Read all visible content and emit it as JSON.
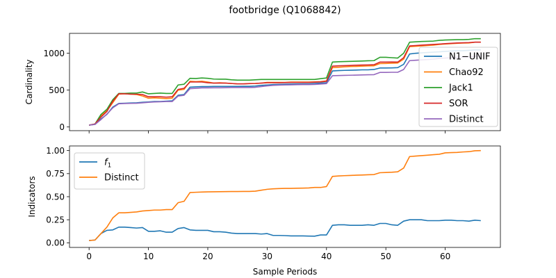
{
  "figure_title": "footbridge (Q1068842)",
  "colors": {
    "N1-UNIF": "#1f77b4",
    "Chao92": "#ff7f0e",
    "Jack1": "#2ca02c",
    "SOR": "#d62728",
    "Distinct": "#9467bd",
    "f1": "#1f77b4",
    "DistinctNorm": "#ff7f0e"
  },
  "chart_data": [
    {
      "type": "line",
      "title": "",
      "xlabel": "",
      "ylabel": "Cardinality",
      "xlim": [
        -3.3,
        69.3
      ],
      "ylim": [
        -50,
        1270
      ],
      "xticks": [
        0,
        10,
        20,
        30,
        40,
        50,
        60
      ],
      "yticks": [
        0,
        500,
        1000
      ],
      "show_xticklabels": false,
      "grid": false,
      "legend_position": "right",
      "x": [
        0,
        1,
        2,
        3,
        4,
        5,
        6,
        7,
        8,
        9,
        10,
        11,
        12,
        13,
        14,
        15,
        16,
        17,
        18,
        19,
        20,
        21,
        22,
        23,
        24,
        25,
        26,
        27,
        28,
        29,
        30,
        31,
        32,
        33,
        34,
        35,
        36,
        37,
        38,
        39,
        40,
        41,
        42,
        43,
        44,
        45,
        46,
        47,
        48,
        49,
        50,
        51,
        52,
        53,
        54,
        55,
        56,
        57,
        58,
        59,
        60,
        61,
        62,
        63,
        64,
        65,
        66
      ],
      "series": [
        {
          "name": "N1−UNIF",
          "color_key": "N1-UNIF",
          "values": [
            25,
            35,
            110,
            170,
            270,
            320,
            322,
            325,
            328,
            335,
            340,
            345,
            345,
            350,
            355,
            430,
            440,
            540,
            545,
            548,
            548,
            550,
            550,
            550,
            550,
            550,
            552,
            552,
            555,
            565,
            570,
            575,
            578,
            580,
            582,
            584,
            585,
            585,
            590,
            595,
            600,
            760,
            765,
            768,
            770,
            772,
            775,
            775,
            780,
            800,
            800,
            802,
            805,
            850,
            990,
            1000,
            1005,
            1010,
            1015,
            1020,
            1025,
            1030,
            1035,
            1035,
            1040,
            1045,
            1045
          ]
        },
        {
          "name": "Chao92",
          "color_key": "Chao92",
          "values": [
            25,
            40,
            150,
            220,
            330,
            445,
            450,
            445,
            440,
            420,
            390,
            395,
            390,
            385,
            390,
            500,
            510,
            620,
            615,
            620,
            610,
            595,
            600,
            595,
            590,
            585,
            585,
            590,
            590,
            595,
            605,
            605,
            605,
            605,
            610,
            610,
            610,
            610,
            612,
            615,
            625,
            805,
            810,
            815,
            820,
            822,
            825,
            828,
            830,
            860,
            862,
            865,
            868,
            920,
            1090,
            1095,
            1100,
            1105,
            1110,
            1120,
            1125,
            1130,
            1135,
            1138,
            1140,
            1150,
            1150
          ]
        },
        {
          "name": "Jack1",
          "color_key": "Jack1",
          "values": [
            25,
            40,
            170,
            240,
            370,
            455,
            455,
            460,
            460,
            475,
            450,
            455,
            460,
            455,
            455,
            570,
            580,
            660,
            658,
            665,
            660,
            650,
            648,
            648,
            640,
            635,
            635,
            635,
            640,
            645,
            645,
            645,
            645,
            645,
            645,
            645,
            645,
            645,
            645,
            655,
            665,
            880,
            885,
            888,
            890,
            892,
            895,
            898,
            900,
            945,
            945,
            940,
            935,
            1000,
            1150,
            1155,
            1160,
            1162,
            1165,
            1175,
            1180,
            1182,
            1185,
            1185,
            1188,
            1198,
            1198
          ]
        },
        {
          "name": "SOR",
          "color_key": "SOR",
          "values": [
            25,
            40,
            135,
            210,
            350,
            450,
            450,
            445,
            445,
            440,
            410,
            410,
            410,
            405,
            410,
            510,
            525,
            610,
            610,
            610,
            600,
            595,
            595,
            595,
            590,
            585,
            585,
            588,
            590,
            595,
            600,
            600,
            600,
            602,
            605,
            605,
            605,
            605,
            608,
            612,
            620,
            825,
            830,
            832,
            835,
            838,
            840,
            842,
            845,
            880,
            880,
            882,
            880,
            940,
            1100,
            1105,
            1110,
            1115,
            1120,
            1125,
            1130,
            1135,
            1140,
            1142,
            1145,
            1150,
            1150
          ]
        },
        {
          "name": "Distinct",
          "color_key": "Distinct",
          "values": [
            25,
            35,
            100,
            175,
            260,
            315,
            318,
            320,
            322,
            328,
            335,
            340,
            342,
            345,
            345,
            420,
            430,
            520,
            525,
            530,
            530,
            532,
            532,
            533,
            535,
            535,
            535,
            535,
            538,
            548,
            558,
            565,
            568,
            570,
            572,
            574,
            575,
            575,
            578,
            582,
            588,
            695,
            698,
            700,
            702,
            704,
            706,
            708,
            710,
            740,
            740,
            742,
            742,
            780,
            900,
            905,
            910,
            915,
            920,
            930,
            935,
            940,
            945,
            948,
            950,
            960,
            960
          ]
        }
      ]
    },
    {
      "type": "line",
      "title": "",
      "xlabel": "Sample Periods",
      "ylabel": "Indicators",
      "xlim": [
        -3.3,
        69.3
      ],
      "ylim": [
        -0.05,
        1.05
      ],
      "xticks": [
        0,
        10,
        20,
        30,
        40,
        50,
        60
      ],
      "yticks": [
        0.0,
        0.25,
        0.5,
        0.75,
        1.0
      ],
      "grid": false,
      "legend_position": "upper left",
      "x": [
        0,
        1,
        2,
        3,
        4,
        5,
        6,
        7,
        8,
        9,
        10,
        11,
        12,
        13,
        14,
        15,
        16,
        17,
        18,
        19,
        20,
        21,
        22,
        23,
        24,
        25,
        26,
        27,
        28,
        29,
        30,
        31,
        32,
        33,
        34,
        35,
        36,
        37,
        38,
        39,
        40,
        41,
        42,
        43,
        44,
        45,
        46,
        47,
        48,
        49,
        50,
        51,
        52,
        53,
        54,
        55,
        56,
        57,
        58,
        59,
        60,
        61,
        62,
        63,
        64,
        65,
        66
      ],
      "series": [
        {
          "name": "f1",
          "label_main": "f",
          "label_sub": "1",
          "color_key": "f1",
          "values": [
            0.025,
            0.03,
            0.1,
            0.135,
            0.14,
            0.17,
            0.17,
            0.165,
            0.16,
            0.165,
            0.125,
            0.125,
            0.13,
            0.115,
            0.115,
            0.155,
            0.165,
            0.14,
            0.135,
            0.135,
            0.135,
            0.12,
            0.12,
            0.115,
            0.105,
            0.1,
            0.1,
            0.1,
            0.1,
            0.095,
            0.1,
            0.08,
            0.08,
            0.078,
            0.075,
            0.075,
            0.075,
            0.073,
            0.072,
            0.085,
            0.085,
            0.19,
            0.195,
            0.195,
            0.19,
            0.19,
            0.19,
            0.195,
            0.19,
            0.21,
            0.21,
            0.195,
            0.19,
            0.235,
            0.25,
            0.25,
            0.25,
            0.24,
            0.24,
            0.24,
            0.245,
            0.245,
            0.24,
            0.24,
            0.235,
            0.245,
            0.24
          ]
        },
        {
          "name": "Distinct",
          "color_key": "DistinctNorm",
          "values": [
            0.025,
            0.03,
            0.1,
            0.17,
            0.27,
            0.325,
            0.325,
            0.33,
            0.335,
            0.345,
            0.35,
            0.355,
            0.355,
            0.36,
            0.36,
            0.435,
            0.45,
            0.545,
            0.548,
            0.55,
            0.552,
            0.553,
            0.554,
            0.555,
            0.556,
            0.556,
            0.557,
            0.557,
            0.56,
            0.57,
            0.58,
            0.585,
            0.588,
            0.59,
            0.59,
            0.592,
            0.593,
            0.595,
            0.6,
            0.6,
            0.61,
            0.72,
            0.725,
            0.728,
            0.73,
            0.733,
            0.735,
            0.738,
            0.74,
            0.76,
            0.762,
            0.765,
            0.77,
            0.81,
            0.935,
            0.94,
            0.945,
            0.95,
            0.955,
            0.96,
            0.975,
            0.978,
            0.98,
            0.985,
            0.988,
            0.998,
            1.0
          ]
        }
      ]
    }
  ]
}
